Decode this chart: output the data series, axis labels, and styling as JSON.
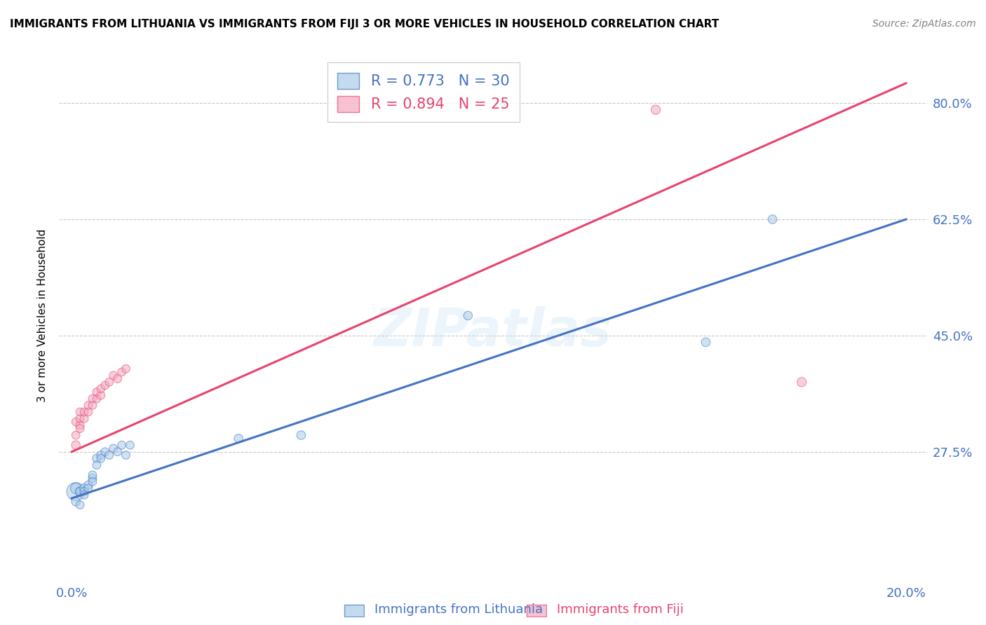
{
  "title": "IMMIGRANTS FROM LITHUANIA VS IMMIGRANTS FROM FIJI 3 OR MORE VEHICLES IN HOUSEHOLD CORRELATION CHART",
  "source": "Source: ZipAtlas.com",
  "tick_color": "#4472c4",
  "ylabel": "3 or more Vehicles in Household",
  "xlim": [
    -0.003,
    0.205
  ],
  "ylim": [
    0.08,
    0.88
  ],
  "xticks": [
    0.0,
    0.05,
    0.1,
    0.15,
    0.2
  ],
  "xtick_labels": [
    "0.0%",
    "",
    "",
    "",
    "20.0%"
  ],
  "yticks": [
    0.275,
    0.45,
    0.625,
    0.8
  ],
  "ytick_labels": [
    "27.5%",
    "45.0%",
    "62.5%",
    "80.0%"
  ],
  "watermark": "ZIPatlas",
  "legend_r_lithuania": "0.773",
  "legend_n_lithuania": "30",
  "legend_r_fiji": "0.894",
  "legend_n_fiji": "25",
  "color_lithuania": "#a8cde8",
  "color_fiji": "#f4a8c0",
  "color_line_lithuania": "#4472c4",
  "color_line_fiji": "#e8436e",
  "lithuania_label": "Immigrants from Lithuania",
  "fiji_label": "Immigrants from Fiji",
  "lithuania_x": [
    0.001,
    0.001,
    0.001,
    0.002,
    0.002,
    0.002,
    0.003,
    0.003,
    0.003,
    0.004,
    0.004,
    0.005,
    0.005,
    0.005,
    0.006,
    0.006,
    0.007,
    0.007,
    0.008,
    0.009,
    0.01,
    0.011,
    0.012,
    0.013,
    0.014,
    0.04,
    0.055,
    0.095,
    0.152,
    0.168
  ],
  "lithuania_y": [
    0.215,
    0.22,
    0.2,
    0.215,
    0.215,
    0.195,
    0.22,
    0.215,
    0.21,
    0.225,
    0.22,
    0.235,
    0.24,
    0.23,
    0.265,
    0.255,
    0.27,
    0.265,
    0.275,
    0.27,
    0.28,
    0.275,
    0.285,
    0.27,
    0.285,
    0.295,
    0.3,
    0.48,
    0.44,
    0.625
  ],
  "lithuania_size": [
    350,
    120,
    80,
    90,
    80,
    70,
    85,
    75,
    70,
    75,
    70,
    75,
    70,
    70,
    75,
    70,
    75,
    70,
    70,
    70,
    70,
    70,
    70,
    70,
    70,
    80,
    80,
    80,
    80,
    80
  ],
  "fiji_x": [
    0.001,
    0.001,
    0.001,
    0.002,
    0.002,
    0.002,
    0.002,
    0.003,
    0.003,
    0.004,
    0.004,
    0.005,
    0.005,
    0.006,
    0.006,
    0.007,
    0.007,
    0.008,
    0.009,
    0.01,
    0.011,
    0.012,
    0.013,
    0.14,
    0.175
  ],
  "fiji_y": [
    0.285,
    0.3,
    0.32,
    0.315,
    0.325,
    0.335,
    0.31,
    0.325,
    0.335,
    0.335,
    0.345,
    0.345,
    0.355,
    0.355,
    0.365,
    0.36,
    0.37,
    0.375,
    0.38,
    0.39,
    0.385,
    0.395,
    0.4,
    0.79,
    0.38
  ],
  "fiji_size": [
    80,
    70,
    70,
    75,
    70,
    70,
    70,
    70,
    70,
    70,
    70,
    70,
    70,
    70,
    70,
    70,
    70,
    70,
    70,
    70,
    70,
    70,
    70,
    90,
    90
  ],
  "background_color": "#ffffff",
  "grid_color": "#c8c8c8",
  "line_lith_x0": 0.0,
  "line_lith_y0": 0.205,
  "line_lith_x1": 0.2,
  "line_lith_y1": 0.625,
  "line_fiji_x0": 0.0,
  "line_fiji_y0": 0.275,
  "line_fiji_x1": 0.2,
  "line_fiji_y1": 0.83
}
